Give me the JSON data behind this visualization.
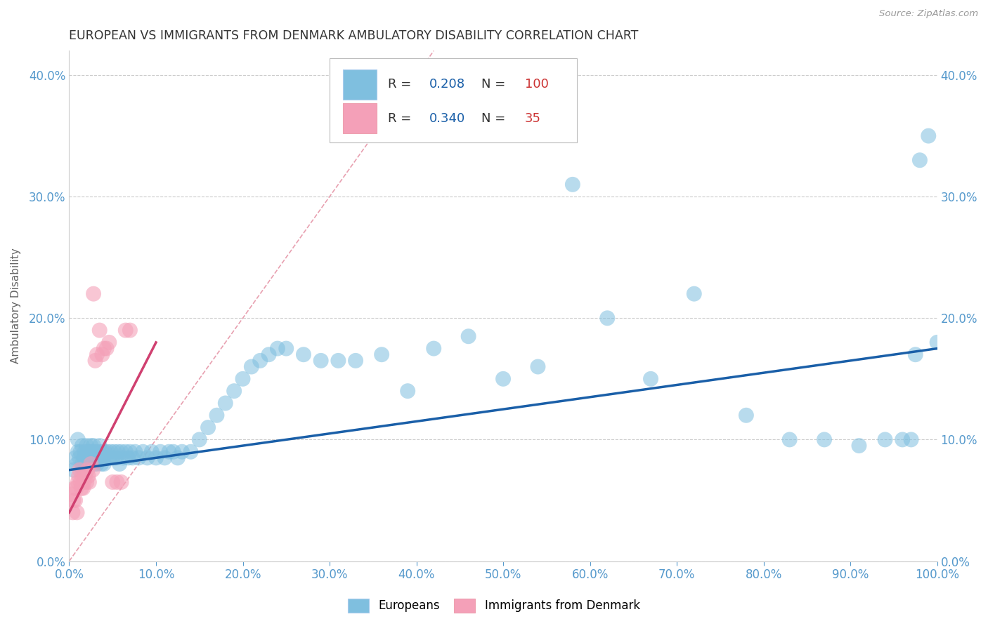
{
  "title": "EUROPEAN VS IMMIGRANTS FROM DENMARK AMBULATORY DISABILITY CORRELATION CHART",
  "source": "Source: ZipAtlas.com",
  "ylabel": "Ambulatory Disability",
  "xlim": [
    0.0,
    1.0
  ],
  "ylim": [
    0.0,
    0.42
  ],
  "xticks": [
    0.0,
    0.1,
    0.2,
    0.3,
    0.4,
    0.5,
    0.6,
    0.7,
    0.8,
    0.9,
    1.0
  ],
  "yticks": [
    0.0,
    0.1,
    0.2,
    0.3,
    0.4
  ],
  "blue_R": 0.208,
  "blue_N": 100,
  "pink_R": 0.34,
  "pink_N": 35,
  "blue_color": "#7fbfdf",
  "pink_color": "#f4a0b8",
  "blue_line_color": "#1a5fa8",
  "pink_line_color": "#d04070",
  "title_color": "#333333",
  "axis_label_color": "#666666",
  "tick_color": "#5599cc",
  "grid_color": "#cccccc",
  "legend_R_color": "#1a5fa8",
  "legend_N_color": "#cc3333",
  "source_color": "#999999",
  "diag_color": "#e8a0b0",
  "background_color": "#ffffff",
  "blue_scatter_x": [
    0.005,
    0.007,
    0.009,
    0.01,
    0.01,
    0.012,
    0.013,
    0.015,
    0.015,
    0.016,
    0.017,
    0.018,
    0.019,
    0.02,
    0.02,
    0.021,
    0.022,
    0.023,
    0.024,
    0.025,
    0.026,
    0.027,
    0.028,
    0.029,
    0.03,
    0.031,
    0.032,
    0.033,
    0.034,
    0.035,
    0.036,
    0.037,
    0.038,
    0.039,
    0.04,
    0.041,
    0.042,
    0.044,
    0.046,
    0.048,
    0.05,
    0.052,
    0.054,
    0.056,
    0.058,
    0.06,
    0.062,
    0.065,
    0.068,
    0.07,
    0.073,
    0.076,
    0.08,
    0.085,
    0.09,
    0.095,
    0.1,
    0.105,
    0.11,
    0.115,
    0.12,
    0.125,
    0.13,
    0.14,
    0.15,
    0.16,
    0.17,
    0.18,
    0.19,
    0.2,
    0.21,
    0.22,
    0.23,
    0.24,
    0.25,
    0.27,
    0.29,
    0.31,
    0.33,
    0.36,
    0.39,
    0.42,
    0.46,
    0.5,
    0.54,
    0.58,
    0.62,
    0.67,
    0.72,
    0.78,
    0.83,
    0.87,
    0.91,
    0.94,
    0.96,
    0.97,
    0.975,
    0.98,
    0.99,
    1.0
  ],
  "blue_scatter_y": [
    0.075,
    0.085,
    0.08,
    0.09,
    0.1,
    0.085,
    0.09,
    0.095,
    0.08,
    0.075,
    0.085,
    0.09,
    0.08,
    0.085,
    0.095,
    0.09,
    0.08,
    0.085,
    0.09,
    0.095,
    0.085,
    0.09,
    0.095,
    0.08,
    0.085,
    0.09,
    0.08,
    0.085,
    0.09,
    0.095,
    0.085,
    0.08,
    0.09,
    0.085,
    0.08,
    0.09,
    0.085,
    0.09,
    0.085,
    0.09,
    0.085,
    0.09,
    0.085,
    0.09,
    0.08,
    0.09,
    0.085,
    0.09,
    0.085,
    0.09,
    0.085,
    0.09,
    0.085,
    0.09,
    0.085,
    0.09,
    0.085,
    0.09,
    0.085,
    0.09,
    0.09,
    0.085,
    0.09,
    0.09,
    0.1,
    0.11,
    0.12,
    0.13,
    0.14,
    0.15,
    0.16,
    0.165,
    0.17,
    0.175,
    0.175,
    0.17,
    0.165,
    0.165,
    0.165,
    0.17,
    0.14,
    0.175,
    0.185,
    0.15,
    0.16,
    0.31,
    0.2,
    0.15,
    0.22,
    0.12,
    0.1,
    0.1,
    0.095,
    0.1,
    0.1,
    0.1,
    0.17,
    0.33,
    0.35,
    0.18
  ],
  "pink_scatter_x": [
    0.003,
    0.004,
    0.005,
    0.006,
    0.007,
    0.008,
    0.009,
    0.01,
    0.011,
    0.012,
    0.013,
    0.014,
    0.015,
    0.016,
    0.017,
    0.018,
    0.02,
    0.021,
    0.022,
    0.023,
    0.025,
    0.027,
    0.028,
    0.03,
    0.032,
    0.035,
    0.038,
    0.04,
    0.043,
    0.046,
    0.05,
    0.055,
    0.06,
    0.065,
    0.07
  ],
  "pink_scatter_y": [
    0.055,
    0.04,
    0.05,
    0.06,
    0.05,
    0.06,
    0.04,
    0.065,
    0.07,
    0.075,
    0.065,
    0.06,
    0.07,
    0.06,
    0.065,
    0.07,
    0.065,
    0.075,
    0.07,
    0.065,
    0.08,
    0.075,
    0.22,
    0.165,
    0.17,
    0.19,
    0.17,
    0.175,
    0.175,
    0.18,
    0.065,
    0.065,
    0.065,
    0.19,
    0.19
  ],
  "blue_trend_x0": 0.0,
  "blue_trend_x1": 1.0,
  "blue_trend_y0": 0.075,
  "blue_trend_y1": 0.175,
  "pink_trend_x0": 0.0,
  "pink_trend_x1": 0.1,
  "pink_trend_y0": 0.04,
  "pink_trend_y1": 0.18
}
